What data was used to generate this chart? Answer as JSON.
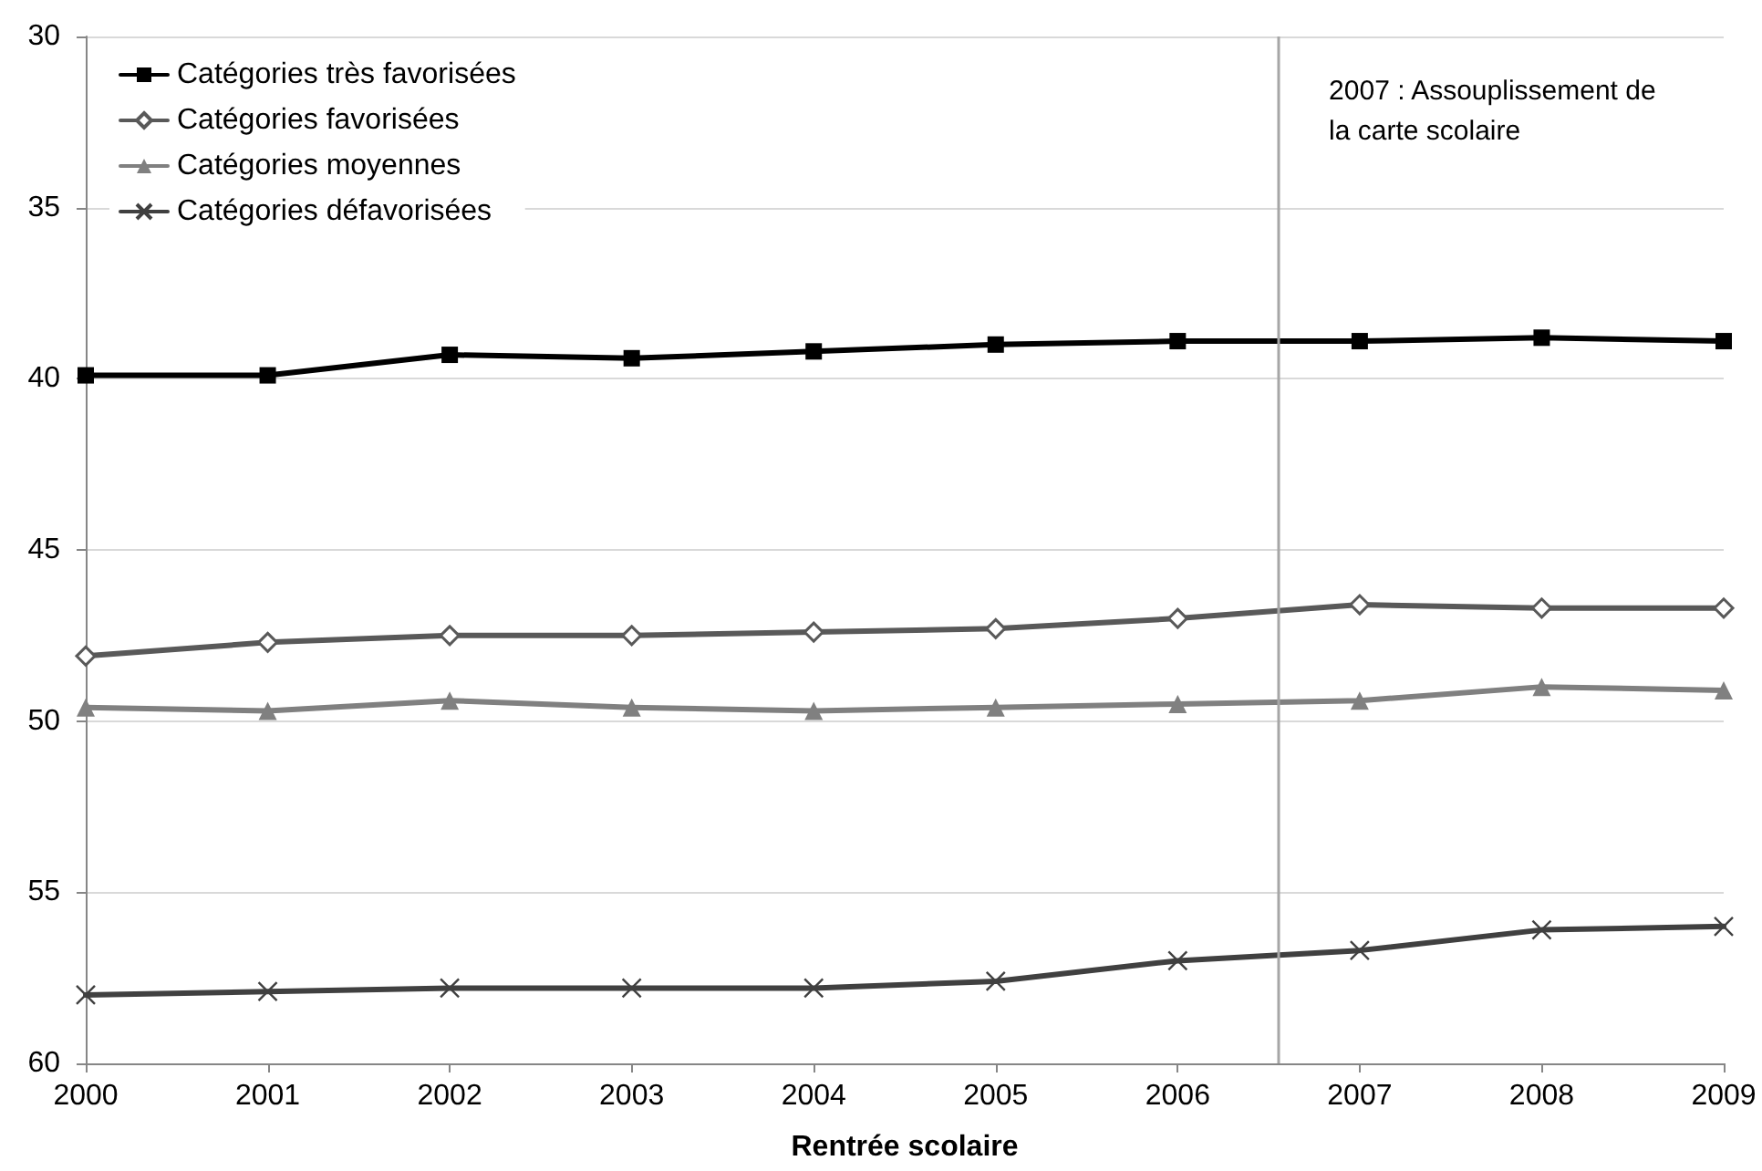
{
  "chart_data": {
    "type": "line",
    "xlabel": "Rentrée scolaire",
    "x": [
      2000,
      2001,
      2002,
      2003,
      2004,
      2005,
      2006,
      2007,
      2008,
      2009
    ],
    "xlim": [
      2000,
      2009
    ],
    "xticks": [
      2000,
      2001,
      2002,
      2003,
      2004,
      2005,
      2006,
      2007,
      2008,
      2009
    ],
    "ylim": [
      60,
      30
    ],
    "yticks": [
      30,
      35,
      40,
      45,
      50,
      55,
      60
    ],
    "grid": "y",
    "legend": "top left",
    "line_style": "solid",
    "series": [
      {
        "name": "Catégories très favorisées",
        "color": "#000000",
        "marker": "square",
        "values": [
          39.9,
          39.9,
          39.3,
          39.4,
          39.2,
          39.0,
          38.9,
          38.9,
          38.8,
          38.9
        ]
      },
      {
        "name": "Catégories favorisées",
        "color": "#595959",
        "marker": "diamond",
        "values": [
          48.1,
          47.7,
          47.5,
          47.5,
          47.4,
          47.3,
          47.0,
          46.6,
          46.7,
          46.7
        ]
      },
      {
        "name": "Catégories moyennes",
        "color": "#808080",
        "marker": "triangle",
        "values": [
          49.6,
          49.7,
          49.4,
          49.6,
          49.7,
          49.6,
          49.5,
          49.4,
          49.0,
          49.1
        ]
      },
      {
        "name": "Catégories défavorisées",
        "color": "#404040",
        "marker": "cross",
        "values": [
          58.0,
          57.9,
          57.8,
          57.8,
          57.8,
          57.6,
          57.0,
          56.7,
          56.1,
          56.0
        ]
      }
    ],
    "ref_lines": [
      {
        "axis": "x",
        "value": 2006.55,
        "label": "2007 : Assouplissement de\nla carte scolaire",
        "color": "#a6a6a6",
        "line_style": "solid"
      }
    ]
  }
}
